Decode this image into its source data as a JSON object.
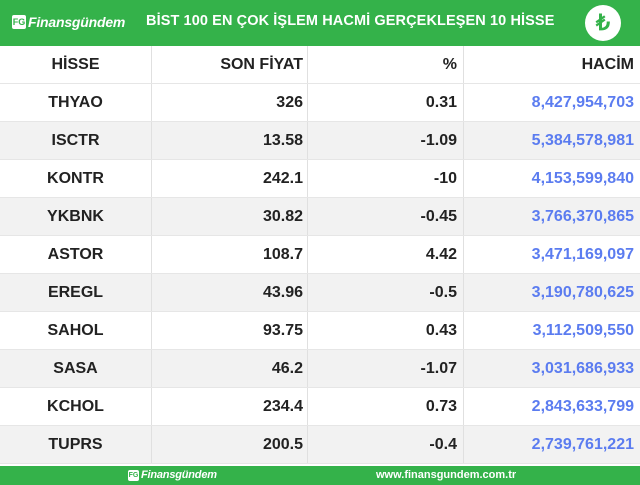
{
  "header": {
    "logo_mark": "FG",
    "logo_text": "Finansgündem",
    "title": "BİST 100 EN ÇOK İŞLEM HACMİ GERÇEKLEŞEN 10 HİSSE",
    "currency_symbol": "₺"
  },
  "table": {
    "columns": [
      "HİSSE",
      "SON FİYAT",
      "%",
      "HACİM"
    ],
    "rows": [
      [
        "THYAO",
        "326",
        "0.31",
        "8,427,954,703"
      ],
      [
        "ISCTR",
        "13.58",
        "-1.09",
        "5,384,578,981"
      ],
      [
        "KONTR",
        "242.1",
        "-10",
        "4,153,599,840"
      ],
      [
        "YKBNK",
        "30.82",
        "-0.45",
        "3,766,370,865"
      ],
      [
        "ASTOR",
        "108.7",
        "4.42",
        "3,471,169,097"
      ],
      [
        "EREGL",
        "43.96",
        "-0.5",
        "3,190,780,625"
      ],
      [
        "SAHOL",
        "93.75",
        "0.43",
        "3,112,509,550"
      ],
      [
        "SASA",
        "46.2",
        "-1.07",
        "3,031,686,933"
      ],
      [
        "KCHOL",
        "234.4",
        "0.73",
        "2,843,633,799"
      ],
      [
        "TUPRS",
        "200.5",
        "-0.4",
        "2,739,761,221"
      ]
    ]
  },
  "footer": {
    "logo_mark": "FG",
    "logo_text": "Finansgündem",
    "website": "www.finansgundem.com.tr"
  },
  "colors": {
    "brand_green": "#34b24a",
    "volume_blue": "#5b7cf0"
  }
}
